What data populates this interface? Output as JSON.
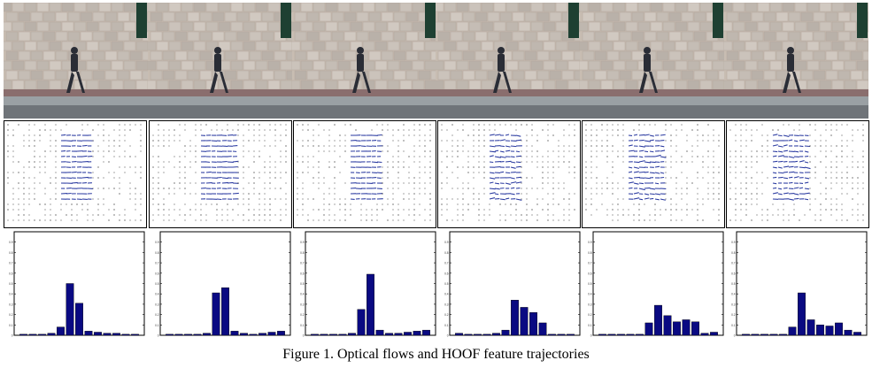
{
  "figure": {
    "caption": "Figure 1. Optical flows and HOOF feature trajectories"
  },
  "colors": {
    "bar": "#0a0a82",
    "flow_vector": "#2a3aa0",
    "wall": "#c8bdb2",
    "sidewalk": "#8a6e6e",
    "road": "#6f7479"
  },
  "video_frames": {
    "count": 6
  },
  "flow_fields": {
    "count": 6
  },
  "chart_data": [
    {
      "type": "bar",
      "title": "",
      "ylim": [
        0,
        1
      ],
      "yticks": [
        0,
        0.1,
        0.2,
        0.3,
        0.4,
        0.5,
        0.6,
        0.7,
        0.8,
        0.9
      ],
      "values": [
        0.01,
        0.01,
        0.01,
        0.02,
        0.08,
        0.5,
        0.31,
        0.04,
        0.03,
        0.02,
        0.02,
        0.01,
        0.01
      ]
    },
    {
      "type": "bar",
      "title": "",
      "ylim": [
        0,
        1
      ],
      "yticks": [
        0,
        0.1,
        0.2,
        0.3,
        0.4,
        0.5,
        0.6,
        0.7,
        0.8,
        0.9
      ],
      "values": [
        0.01,
        0.01,
        0.01,
        0.01,
        0.02,
        0.41,
        0.46,
        0.04,
        0.02,
        0.01,
        0.02,
        0.03,
        0.04
      ]
    },
    {
      "type": "bar",
      "title": "",
      "ylim": [
        0,
        1
      ],
      "yticks": [
        0,
        0.1,
        0.2,
        0.3,
        0.4,
        0.5,
        0.6,
        0.7,
        0.8,
        0.9
      ],
      "values": [
        0.01,
        0.01,
        0.01,
        0.01,
        0.02,
        0.25,
        0.59,
        0.05,
        0.02,
        0.02,
        0.03,
        0.04,
        0.05
      ]
    },
    {
      "type": "bar",
      "title": "",
      "ylim": [
        0,
        1
      ],
      "yticks": [
        0,
        0.1,
        0.2,
        0.3,
        0.4,
        0.5,
        0.6,
        0.7,
        0.8,
        0.9
      ],
      "values": [
        0.02,
        0.01,
        0.01,
        0.01,
        0.02,
        0.05,
        0.34,
        0.27,
        0.22,
        0.12,
        0.01,
        0.01,
        0.01
      ]
    },
    {
      "type": "bar",
      "title": "",
      "ylim": [
        0,
        1
      ],
      "yticks": [
        0,
        0.1,
        0.2,
        0.3,
        0.4,
        0.5,
        0.6,
        0.7,
        0.8,
        0.9
      ],
      "values": [
        0.01,
        0.01,
        0.01,
        0.01,
        0.01,
        0.12,
        0.29,
        0.19,
        0.13,
        0.15,
        0.13,
        0.02,
        0.03
      ]
    },
    {
      "type": "bar",
      "title": "",
      "ylim": [
        0,
        1
      ],
      "yticks": [
        0,
        0.1,
        0.2,
        0.3,
        0.4,
        0.5,
        0.6,
        0.7,
        0.8,
        0.9
      ],
      "values": [
        0.01,
        0.01,
        0.01,
        0.01,
        0.01,
        0.08,
        0.41,
        0.15,
        0.1,
        0.09,
        0.12,
        0.05,
        0.03
      ]
    }
  ]
}
